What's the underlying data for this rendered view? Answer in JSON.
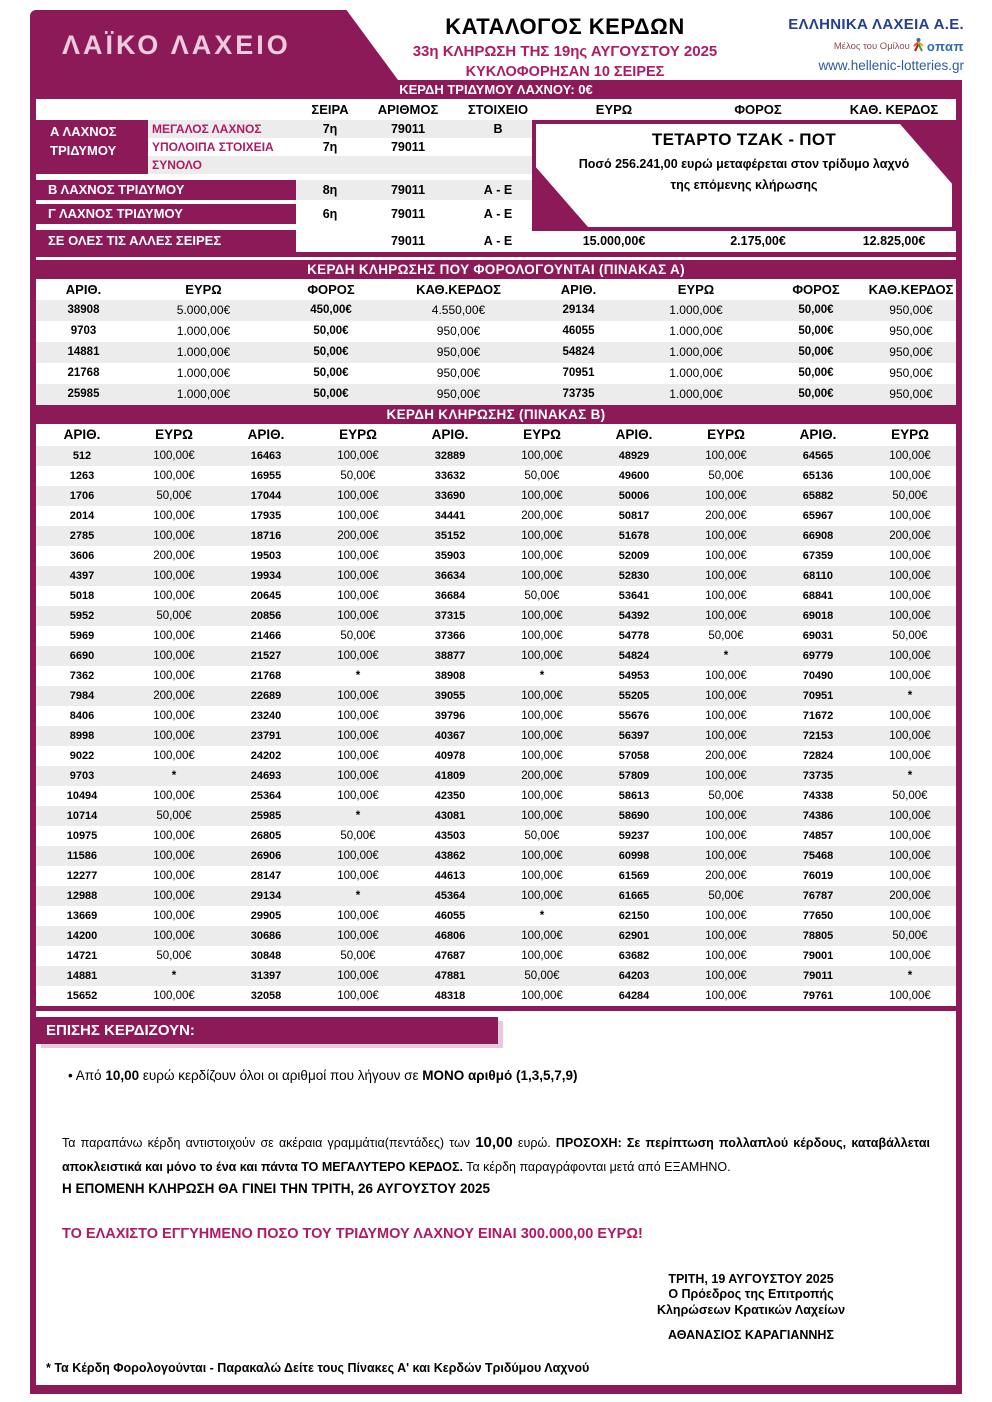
{
  "colors": {
    "magenta": "#8d1a58",
    "accent_text": "#b01a62",
    "row_alt": "#ececec",
    "navy": "#243f8f",
    "blue": "#2d5aa0"
  },
  "header": {
    "logo_text": "ΛΑΪΚΟ ΛΑΧΕΙΟ",
    "title": "ΚΑΤΑΛΟΓΟΣ ΚΕΡΔΩΝ",
    "subtitle1": "33η ΚΛΗΡΩΣΗ ΤΗΣ 19ης ΑΥΓΟΥΣΤΟΥ 2025",
    "subtitle2": "ΚΥΚΛΟΦΟΡΗΣΑΝ 10 ΣΕΙΡΕΣ",
    "company": "ΕΛΛΗΝΙΚΑ ΛΑΧΕΙΑ Α.Ε.",
    "member_of": "Μέλος του Ομίλου",
    "opap": "οπαπ",
    "website": "www.hellenic-lotteries.gr"
  },
  "triplet_band": "ΚΕΡΔΗ ΤΡΙΔΥΜΟΥ ΛΑΧΝΟΥ: 0€",
  "top_table": {
    "headers": [
      "ΣΕΙΡΑ",
      "ΑΡΙΘΜΟΣ",
      "ΣΤΟΙΧΕΙΟ",
      "ΕΥΡΩ",
      "ΦΟΡΟΣ",
      "ΚΑΘ. ΚΕΡΔΟΣ"
    ],
    "a_label_line1": "Α ΛΑΧΝΟΣ",
    "a_label_line2": "ΤΡΙΔΥΜΟΥ",
    "a_rows": [
      {
        "name": "ΜΕΓΑΛΟΣ ΛΑΧΝΟΣ",
        "seira": "7η",
        "arithmos": "79011",
        "stoixeio": "Β"
      },
      {
        "name": "ΥΠΟΛΟΙΠΑ ΣΤΟΙΧΕΙΑ",
        "seira": "7η",
        "arithmos": "79011",
        "stoixeio": ""
      },
      {
        "name": "ΣΥΝΟΛΟ",
        "seira": "",
        "arithmos": "",
        "stoixeio": ""
      }
    ],
    "b_row": {
      "label": "Β ΛΑΧΝΟΣ ΤΡΙΔΥΜΟΥ",
      "seira": "8η",
      "arithmos": "79011",
      "stoixeio": "Α - Ε"
    },
    "g_row": {
      "label": "Γ ΛΑΧΝΟΣ ΤΡΙΔΥΜΟΥ",
      "seira": "6η",
      "arithmos": "79011",
      "stoixeio": "Α - Ε"
    },
    "all_row": {
      "label": "ΣΕ ΟΛΕΣ ΤΙΣ ΑΛΛΕΣ ΣΕΙΡΕΣ",
      "arithmos": "79011",
      "stoixeio": "Α - Ε",
      "euro": "15.000,00€",
      "foros": "2.175,00€",
      "net": "12.825,00€"
    },
    "jackpot": {
      "title": "ΤΕΤΑΡΤΟ ΤΖΑΚ - ΠΟΤ",
      "line1": "Ποσό 256.241,00 ευρώ μεταφέρεται στον τρίδυμο λαχνό",
      "line2": "της επόμενης κλήρωσης"
    }
  },
  "table_a": {
    "title": "ΚΕΡΔΗ ΚΛΗΡΩΣΗΣ ΠΟΥ ΦΟΡΟΛΟΓΟΥΝΤΑΙ (ΠΙΝΑΚΑΣ Α)",
    "headers": [
      "ΑΡΙΘ.",
      "ΕΥΡΩ",
      "ΦΟΡΟΣ",
      "ΚΑΘ.ΚΕΡΔΟΣ",
      "ΑΡΙΘ.",
      "ΕΥΡΩ",
      "ΦΟΡΟΣ",
      "ΚΑΘ.ΚΕΡΔΟΣ"
    ],
    "rows": [
      [
        "38908",
        "5.000,00€",
        "450,00€",
        "4.550,00€",
        "29134",
        "1.000,00€",
        "50,00€",
        "950,00€"
      ],
      [
        "9703",
        "1.000,00€",
        "50,00€",
        "950,00€",
        "46055",
        "1.000,00€",
        "50,00€",
        "950,00€"
      ],
      [
        "14881",
        "1.000,00€",
        "50,00€",
        "950,00€",
        "54824",
        "1.000,00€",
        "50,00€",
        "950,00€"
      ],
      [
        "21768",
        "1.000,00€",
        "50,00€",
        "950,00€",
        "70951",
        "1.000,00€",
        "50,00€",
        "950,00€"
      ],
      [
        "25985",
        "1.000,00€",
        "50,00€",
        "950,00€",
        "73735",
        "1.000,00€",
        "50,00€",
        "950,00€"
      ]
    ]
  },
  "table_b": {
    "title": "ΚΕΡΔΗ ΚΛΗΡΩΣΗΣ (ΠΙΝΑΚΑΣ Β)",
    "headers": [
      "ΑΡΙΘ.",
      "ΕΥΡΩ",
      "ΑΡΙΘ.",
      "ΕΥΡΩ",
      "ΑΡΙΘ.",
      "ΕΥΡΩ",
      "ΑΡΙΘ.",
      "ΕΥΡΩ",
      "ΑΡΙΘ.",
      "ΕΥΡΩ"
    ],
    "rows": [
      [
        "512",
        "100,00€",
        "16463",
        "100,00€",
        "32889",
        "100,00€",
        "48929",
        "100,00€",
        "64565",
        "100,00€"
      ],
      [
        "1263",
        "100,00€",
        "16955",
        "50,00€",
        "33632",
        "50,00€",
        "49600",
        "50,00€",
        "65136",
        "100,00€"
      ],
      [
        "1706",
        "50,00€",
        "17044",
        "100,00€",
        "33690",
        "100,00€",
        "50006",
        "100,00€",
        "65882",
        "50,00€"
      ],
      [
        "2014",
        "100,00€",
        "17935",
        "100,00€",
        "34441",
        "200,00€",
        "50817",
        "200,00€",
        "65967",
        "100,00€"
      ],
      [
        "2785",
        "100,00€",
        "18716",
        "200,00€",
        "35152",
        "100,00€",
        "51678",
        "100,00€",
        "66908",
        "200,00€"
      ],
      [
        "3606",
        "200,00€",
        "19503",
        "100,00€",
        "35903",
        "100,00€",
        "52009",
        "100,00€",
        "67359",
        "100,00€"
      ],
      [
        "4397",
        "100,00€",
        "19934",
        "100,00€",
        "36634",
        "100,00€",
        "52830",
        "100,00€",
        "68110",
        "100,00€"
      ],
      [
        "5018",
        "100,00€",
        "20645",
        "100,00€",
        "36684",
        "50,00€",
        "53641",
        "100,00€",
        "68841",
        "100,00€"
      ],
      [
        "5952",
        "50,00€",
        "20856",
        "100,00€",
        "37315",
        "100,00€",
        "54392",
        "100,00€",
        "69018",
        "100,00€"
      ],
      [
        "5969",
        "100,00€",
        "21466",
        "50,00€",
        "37366",
        "100,00€",
        "54778",
        "50,00€",
        "69031",
        "50,00€"
      ],
      [
        "6690",
        "100,00€",
        "21527",
        "100,00€",
        "38877",
        "100,00€",
        "54824",
        "*",
        "69779",
        "100,00€"
      ],
      [
        "7362",
        "100,00€",
        "21768",
        "*",
        "38908",
        "*",
        "54953",
        "100,00€",
        "70490",
        "100,00€"
      ],
      [
        "7984",
        "200,00€",
        "22689",
        "100,00€",
        "39055",
        "100,00€",
        "55205",
        "100,00€",
        "70951",
        "*"
      ],
      [
        "8406",
        "100,00€",
        "23240",
        "100,00€",
        "39796",
        "100,00€",
        "55676",
        "100,00€",
        "71672",
        "100,00€"
      ],
      [
        "8998",
        "100,00€",
        "23791",
        "100,00€",
        "40367",
        "100,00€",
        "56397",
        "100,00€",
        "72153",
        "100,00€"
      ],
      [
        "9022",
        "100,00€",
        "24202",
        "100,00€",
        "40978",
        "100,00€",
        "57058",
        "200,00€",
        "72824",
        "100,00€"
      ],
      [
        "9703",
        "*",
        "24693",
        "100,00€",
        "41809",
        "200,00€",
        "57809",
        "100,00€",
        "73735",
        "*"
      ],
      [
        "10494",
        "100,00€",
        "25364",
        "100,00€",
        "42350",
        "100,00€",
        "58613",
        "50,00€",
        "74338",
        "50,00€"
      ],
      [
        "10714",
        "50,00€",
        "25985",
        "*",
        "43081",
        "100,00€",
        "58690",
        "100,00€",
        "74386",
        "100,00€"
      ],
      [
        "10975",
        "100,00€",
        "26805",
        "50,00€",
        "43503",
        "50,00€",
        "59237",
        "100,00€",
        "74857",
        "100,00€"
      ],
      [
        "11586",
        "100,00€",
        "26906",
        "100,00€",
        "43862",
        "100,00€",
        "60998",
        "100,00€",
        "75468",
        "100,00€"
      ],
      [
        "12277",
        "100,00€",
        "28147",
        "100,00€",
        "44613",
        "100,00€",
        "61569",
        "200,00€",
        "76019",
        "100,00€"
      ],
      [
        "12988",
        "100,00€",
        "29134",
        "*",
        "45364",
        "100,00€",
        "61665",
        "50,00€",
        "76787",
        "200,00€"
      ],
      [
        "13669",
        "100,00€",
        "29905",
        "100,00€",
        "46055",
        "*",
        "62150",
        "100,00€",
        "77650",
        "100,00€"
      ],
      [
        "14200",
        "100,00€",
        "30686",
        "100,00€",
        "46806",
        "100,00€",
        "62901",
        "100,00€",
        "78805",
        "50,00€"
      ],
      [
        "14721",
        "50,00€",
        "30848",
        "50,00€",
        "47687",
        "100,00€",
        "63682",
        "100,00€",
        "79001",
        "100,00€"
      ],
      [
        "14881",
        "*",
        "31397",
        "100,00€",
        "47881",
        "50,00€",
        "64203",
        "100,00€",
        "79011",
        "*"
      ],
      [
        "15652",
        "100,00€",
        "32058",
        "100,00€",
        "48318",
        "100,00€",
        "64284",
        "100,00€",
        "79761",
        "100,00€"
      ]
    ]
  },
  "also_win": {
    "title": "ΕΠΙΣΗΣ ΚΕΡΔΙΖΟΥΝ:",
    "bullet_pre": "• Από ",
    "bullet_bold1": "10,00",
    "bullet_mid": " ευρώ κερδίζουν όλοι οι αριθμοί που λήγουν σε ",
    "bullet_bold2": "ΜΟΝΟ αριθμό (1,3,5,7,9)"
  },
  "notes": {
    "p1": "Τα παραπάνω κέρδη αντιστοιχούν σε ακέραια γραμμάτια(πεντάδες) των ",
    "p2": "10,00",
    "p3": " ευρώ. ",
    "p4": "ΠΡΟΣΟΧΗ: Σε περίπτωση πολλαπλού κέρδους, καταβάλλεται αποκλειστικά και  μόνο το ένα και πάντα ΤΟ ΜΕΓΑΛΥΤΕΡΟ ΚΕΡΔΟΣ.",
    "p5": " Τα κέρδη παραγράφονται μετά από ΕΞΑΜΗΝΟ.",
    "next_draw": "Η ΕΠΟΜΕΝΗ ΚΛΗΡΩΣΗ ΘΑ ΓΙΝΕΙ ΤΗΝ ΤΡΙΤΗ, 26 ΑΥΓΟΥΣΤΟΥ 2025",
    "guaranteed": "ΤΟ ΕΛΑΧΙΣΤΟ ΕΓΓΥΗΜΕΝΟ ΠΟΣΟ ΤΟΥ ΤΡΙΔΥΜΟΥ ΛΑΧΝΟΥ ΕΙΝΑΙ 300.000,00 ΕΥΡΩ!"
  },
  "signature": {
    "lines": [
      "ΤΡΙΤΗ, 19 ΑΥΓΟΥΣΤΟΥ 2025",
      "Ο Πρόεδρος της Επιτροπής",
      "Κληρώσεων Κρατικών Λαχείων"
    ],
    "name": "ΑΘΑΝΑΣΙΟΣ ΚΑΡΑΓΙΑΝΝΗΣ"
  },
  "footnote": "* Τα Κέρδη Φορολογούνται - Παρακαλώ Δείτε τους Πίνακες Α' και  Κερδών Τριδύμου Λαχνού"
}
